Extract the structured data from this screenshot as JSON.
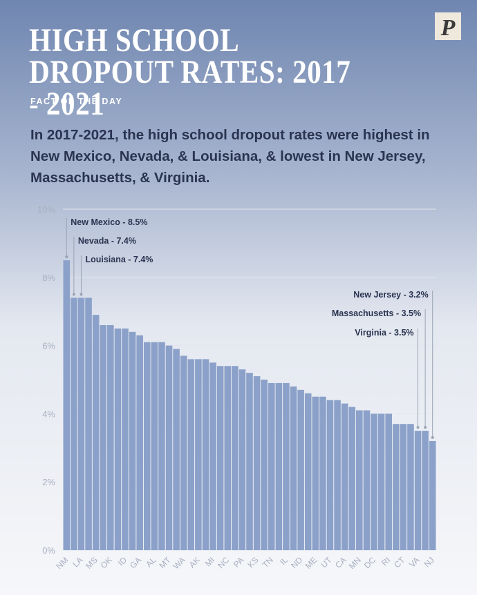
{
  "header": {
    "title": "HIGH SCHOOL DROPOUT RATES: 2017 - 2021",
    "subtitle": "FACT OF THE DAY",
    "description": "In 2017-2021, the high school dropout rates were highest in New Mexico, Nevada, & Louisiana, & lowest in New Jersey, Massachusetts, & Virginia.",
    "logo": "P"
  },
  "chart_data": {
    "type": "bar",
    "color": "#8ba1c9",
    "categories": [
      "NM",
      null,
      "LA",
      null,
      "MS",
      null,
      "OK",
      null,
      "ID",
      null,
      "GA",
      null,
      "AL",
      null,
      "MT",
      null,
      "WA",
      null,
      "AK",
      null,
      "MI",
      null,
      "NC",
      null,
      "PA",
      null,
      "KS",
      null,
      "TN",
      null,
      "IL",
      null,
      "ND",
      null,
      "ME",
      null,
      "UT",
      null,
      "CA",
      null,
      "MN",
      null,
      "DC",
      null,
      "RI",
      null,
      "CT",
      null,
      "VA",
      null,
      "NJ"
    ],
    "values": [
      8.5,
      7.4,
      7.4,
      7.4,
      6.9,
      6.6,
      6.6,
      6.5,
      6.5,
      6.4,
      6.3,
      6.1,
      6.1,
      6.1,
      6.0,
      5.9,
      5.7,
      5.6,
      5.6,
      5.6,
      5.5,
      5.4,
      5.4,
      5.4,
      5.3,
      5.2,
      5.1,
      5.0,
      4.9,
      4.9,
      4.9,
      4.8,
      4.7,
      4.6,
      4.5,
      4.5,
      4.4,
      4.4,
      4.3,
      4.2,
      4.1,
      4.1,
      4.0,
      4.0,
      4.0,
      3.7,
      3.7,
      3.7,
      3.5,
      3.5,
      3.2
    ],
    "ylim": [
      0,
      10
    ],
    "yticks": [
      {
        "value": 0,
        "label": "0%"
      },
      {
        "value": 2,
        "label": "2%"
      },
      {
        "value": 4,
        "label": "4%"
      },
      {
        "value": 6,
        "label": "6%"
      },
      {
        "value": 8,
        "label": "8%"
      },
      {
        "value": 10,
        "label": "10%"
      }
    ],
    "grid": true,
    "annotations": [
      "New Mexico - 8.5%",
      "Nevada - 7.4%",
      "Louisiana - 7.4%",
      "New Jersey - 3.2%",
      "Massachusetts - 3.5%",
      "Virginia - 3.5%"
    ]
  }
}
